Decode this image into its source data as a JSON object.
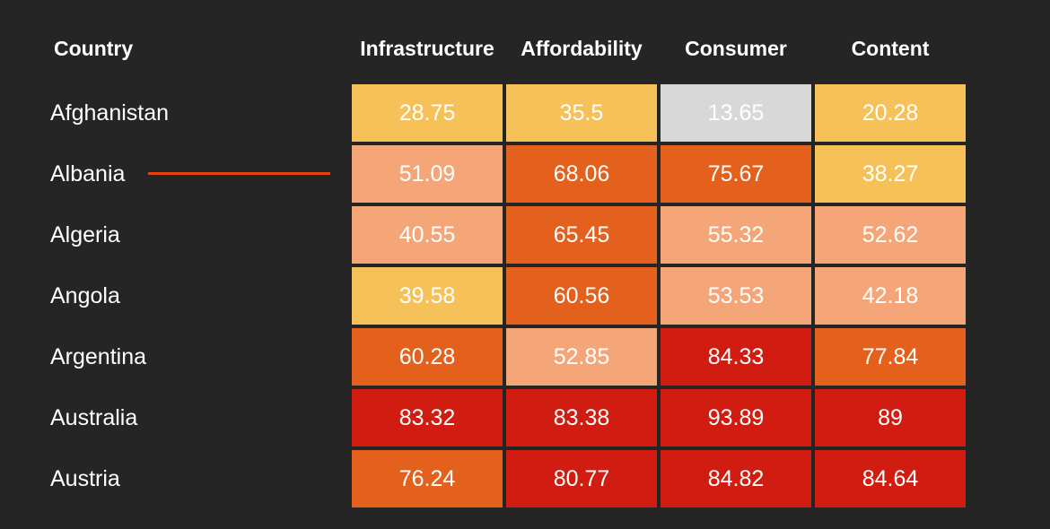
{
  "chart_data": {
    "type": "heatmap",
    "header_row_label": "Country",
    "columns": [
      "Infrastructure",
      "Affordability",
      "Consumer",
      "Content"
    ],
    "rows": [
      "Afghanistan",
      "Albania",
      "Algeria",
      "Angola",
      "Argentina",
      "Australia",
      "Austria"
    ],
    "values": [
      [
        "28.75",
        "35.5",
        "13.65",
        "20.28"
      ],
      [
        "51.09",
        "68.06",
        "75.67",
        "38.27"
      ],
      [
        "40.55",
        "65.45",
        "55.32",
        "52.62"
      ],
      [
        "39.58",
        "60.56",
        "53.53",
        "42.18"
      ],
      [
        "60.28",
        "52.85",
        "84.33",
        "77.84"
      ],
      [
        "83.32",
        "83.38",
        "93.89",
        "89"
      ],
      [
        "76.24",
        "80.77",
        "84.82",
        "84.64"
      ]
    ],
    "highlighted_row": "Albania",
    "colors": {
      "background": "#252525",
      "lowest": "#d8d8d8",
      "low": "#f5c158",
      "mid": "#f4a678",
      "high": "#e3611c",
      "highest": "#d01c11",
      "pointer": "#e6410f"
    }
  }
}
